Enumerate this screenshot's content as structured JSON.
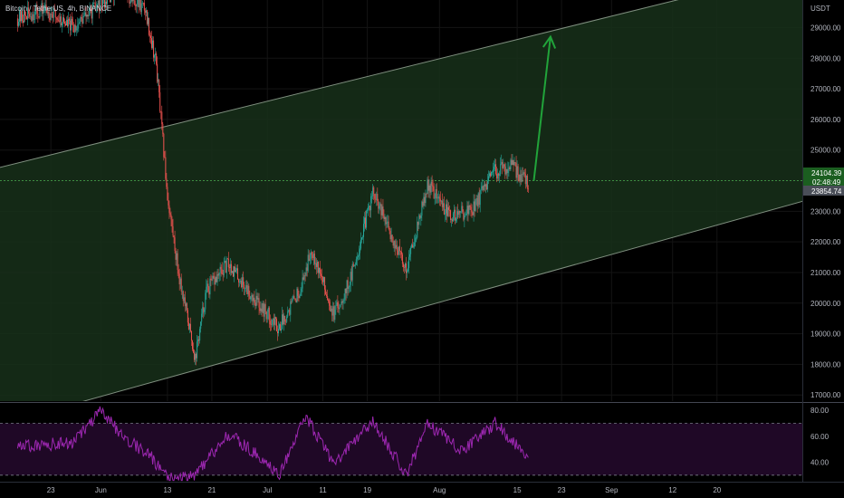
{
  "header": {
    "title": "Bitcoin / TetherUS, 4h, BINANCE",
    "currency": "USDT"
  },
  "colors": {
    "background": "#000000",
    "up": "#26a69a",
    "down": "#ef5350",
    "channel_fill": "#1b3a1b",
    "channel_line": "#7f8f7f",
    "arrow": "#21a33a",
    "rsi_line": "#9c27b0",
    "rsi_band": "#1f0826"
  },
  "tags": {
    "price": "24104.39",
    "countdown": "02:48:49",
    "crosshair": "23854.74"
  },
  "chart_data": {
    "type": "candlestick",
    "title": "Bitcoin / TetherUS, 4h, BINANCE",
    "ylabel": "USDT",
    "ylim": [
      16800,
      29900
    ],
    "y_ticks": [
      "29000.00",
      "28000.00",
      "27000.00",
      "26000.00",
      "25000.00",
      "24000.00",
      "23000.00",
      "22000.00",
      "21000.00",
      "20000.00",
      "19000.00",
      "18000.00",
      "17000.00"
    ],
    "x_ticks": [
      "23",
      "Jun",
      "13",
      "21",
      "Jul",
      "11",
      "19",
      "Aug",
      "15",
      "23",
      "Sep",
      "12",
      "20"
    ],
    "x_tick_dates": [
      "2022-05-23",
      "2022-06-01",
      "2022-06-13",
      "2022-06-21",
      "2022-07-01",
      "2022-07-11",
      "2022-07-19",
      "2022-08-01",
      "2022-08-15",
      "2022-08-23",
      "2022-09-01",
      "2022-09-12",
      "2022-09-20"
    ],
    "price_path": [
      {
        "date": "2022-05-17",
        "close": 29300
      },
      {
        "date": "2022-05-22",
        "close": 29600
      },
      {
        "date": "2022-05-27",
        "close": 29000
      },
      {
        "date": "2022-06-01",
        "close": 29800
      },
      {
        "date": "2022-06-05",
        "close": 30200
      },
      {
        "date": "2022-06-09",
        "close": 29600
      },
      {
        "date": "2022-06-11",
        "close": 27800
      },
      {
        "date": "2022-06-13",
        "close": 23500
      },
      {
        "date": "2022-06-15",
        "close": 21000
      },
      {
        "date": "2022-06-18",
        "close": 18200
      },
      {
        "date": "2022-06-20",
        "close": 20400
      },
      {
        "date": "2022-06-24",
        "close": 21300
      },
      {
        "date": "2022-06-28",
        "close": 20300
      },
      {
        "date": "2022-07-03",
        "close": 19200
      },
      {
        "date": "2022-07-07",
        "close": 20500
      },
      {
        "date": "2022-07-09",
        "close": 21800
      },
      {
        "date": "2022-07-13",
        "close": 19600
      },
      {
        "date": "2022-07-16",
        "close": 20800
      },
      {
        "date": "2022-07-20",
        "close": 23600
      },
      {
        "date": "2022-07-26",
        "close": 21100
      },
      {
        "date": "2022-07-30",
        "close": 23900
      },
      {
        "date": "2022-08-03",
        "close": 22800
      },
      {
        "date": "2022-08-07",
        "close": 23100
      },
      {
        "date": "2022-08-11",
        "close": 24300
      },
      {
        "date": "2022-08-14",
        "close": 24500
      },
      {
        "date": "2022-08-17",
        "close": 23900
      }
    ],
    "rsi": {
      "ylim": [
        25,
        85
      ],
      "y_ticks": [
        "80.00",
        "60.00",
        "40.00"
      ],
      "upper_band": 70,
      "lower band": 30,
      "path": [
        {
          "date": "2022-05-17",
          "value": 52
        },
        {
          "date": "2022-05-27",
          "value": 55
        },
        {
          "date": "2022-06-01",
          "value": 79
        },
        {
          "date": "2022-06-05",
          "value": 60
        },
        {
          "date": "2022-06-10",
          "value": 45
        },
        {
          "date": "2022-06-13",
          "value": 28
        },
        {
          "date": "2022-06-18",
          "value": 30
        },
        {
          "date": "2022-06-24",
          "value": 62
        },
        {
          "date": "2022-06-30",
          "value": 43
        },
        {
          "date": "2022-07-03",
          "value": 30
        },
        {
          "date": "2022-07-08",
          "value": 75
        },
        {
          "date": "2022-07-13",
          "value": 38
        },
        {
          "date": "2022-07-20",
          "value": 72
        },
        {
          "date": "2022-07-26",
          "value": 30
        },
        {
          "date": "2022-07-30",
          "value": 70
        },
        {
          "date": "2022-08-05",
          "value": 48
        },
        {
          "date": "2022-08-11",
          "value": 70
        },
        {
          "date": "2022-08-17",
          "value": 45
        }
      ]
    },
    "channel": {
      "upper": [
        {
          "date": "2022-04-23",
          "price": 23500
        },
        {
          "date": "2022-09-15",
          "price": 30000
        }
      ],
      "lower": [
        {
          "date": "2022-05-29",
          "price": 16800
        },
        {
          "date": "2022-09-25",
          "price": 22800
        }
      ]
    },
    "projection_arrow": {
      "from": {
        "date": "2022-08-18",
        "price": 24000
      },
      "to": {
        "date": "2022-08-21",
        "price": 28700
      }
    },
    "horizontal_line_price": 24000,
    "grid": true,
    "legend": "none"
  }
}
